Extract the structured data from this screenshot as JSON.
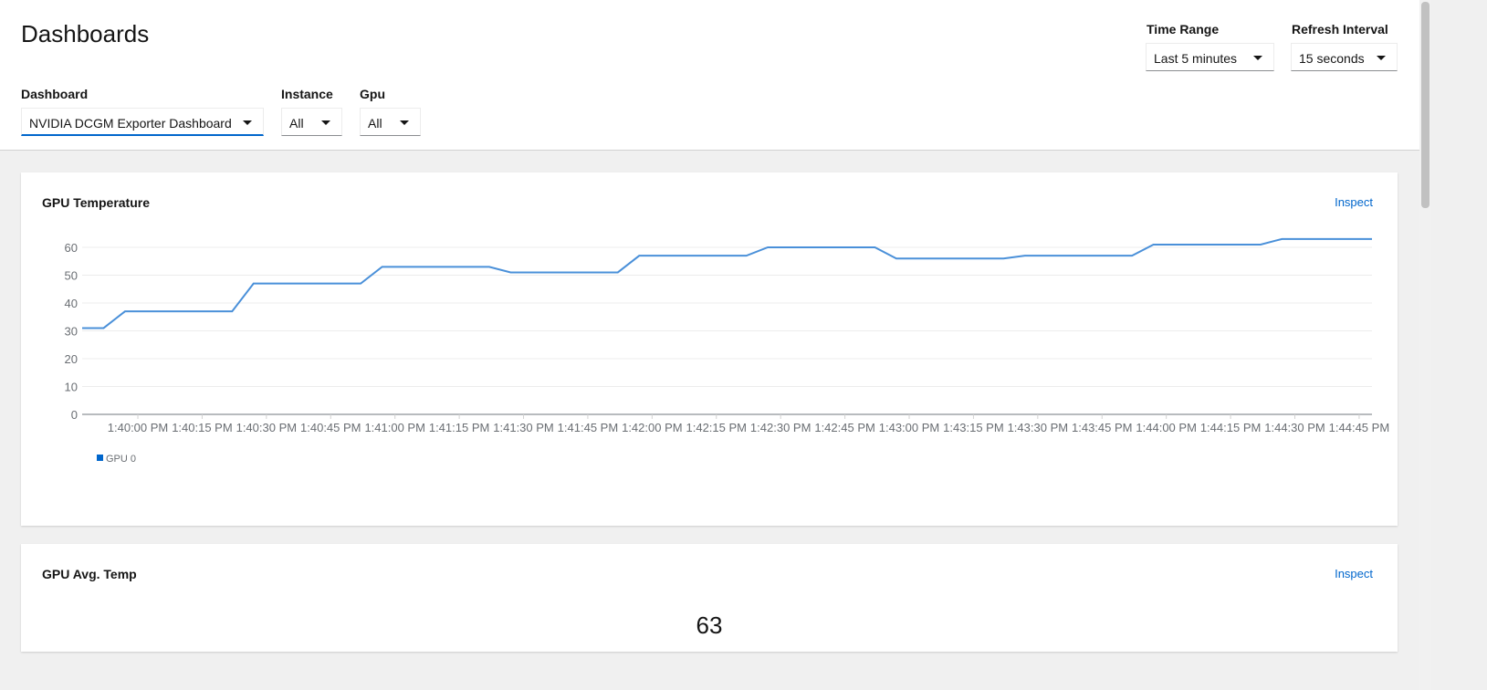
{
  "header": {
    "title": "Dashboards",
    "dashboard": {
      "label": "Dashboard",
      "value": "NVIDIA DCGM Exporter Dashboard"
    },
    "instance": {
      "label": "Instance",
      "value": "All"
    },
    "gpu": {
      "label": "Gpu",
      "value": "All"
    },
    "time_range": {
      "label": "Time Range",
      "value": "Last 5 minutes"
    },
    "refresh": {
      "label": "Refresh Interval",
      "value": "15 seconds"
    }
  },
  "panels": [
    {
      "title": "GPU Temperature",
      "inspect": "Inspect"
    },
    {
      "title": "GPU Avg. Temp",
      "inspect": "Inspect",
      "value": "63"
    }
  ],
  "colors": {
    "accent": "#0066cc",
    "series": "#4a90d9"
  },
  "chart_data": {
    "type": "line",
    "title": "GPU Temperature",
    "ylim": [
      0,
      65
    ],
    "yticks": [
      0,
      10,
      20,
      30,
      40,
      50,
      60
    ],
    "xticks": [
      "1:40:00 PM",
      "1:40:15 PM",
      "1:40:30 PM",
      "1:40:45 PM",
      "1:41:00 PM",
      "1:41:15 PM",
      "1:41:30 PM",
      "1:41:45 PM",
      "1:42:00 PM",
      "1:42:15 PM",
      "1:42:30 PM",
      "1:42:45 PM",
      "1:43:00 PM",
      "1:43:15 PM",
      "1:43:30 PM",
      "1:43:45 PM",
      "1:44:00 PM",
      "1:44:15 PM",
      "1:44:30 PM",
      "1:44:45 PM"
    ],
    "xlim": [
      "1:39:47 PM",
      "1:44:48 PM"
    ],
    "grid": true,
    "legend": "bottom-left",
    "series": [
      {
        "name": "GPU 0",
        "points": [
          [
            "1:39:47 PM",
            31
          ],
          [
            "1:39:52 PM",
            31
          ],
          [
            "1:39:57 PM",
            37
          ],
          [
            "1:40:22 PM",
            37
          ],
          [
            "1:40:27 PM",
            47
          ],
          [
            "1:40:52 PM",
            47
          ],
          [
            "1:40:57 PM",
            53
          ],
          [
            "1:41:22 PM",
            53
          ],
          [
            "1:41:27 PM",
            51
          ],
          [
            "1:41:52 PM",
            51
          ],
          [
            "1:41:57 PM",
            57
          ],
          [
            "1:42:22 PM",
            57
          ],
          [
            "1:42:27 PM",
            60
          ],
          [
            "1:42:52 PM",
            60
          ],
          [
            "1:42:57 PM",
            56
          ],
          [
            "1:43:22 PM",
            56
          ],
          [
            "1:43:27 PM",
            57
          ],
          [
            "1:43:52 PM",
            57
          ],
          [
            "1:43:57 PM",
            61
          ],
          [
            "1:44:22 PM",
            61
          ],
          [
            "1:44:27 PM",
            63
          ],
          [
            "1:44:48 PM",
            63
          ]
        ]
      }
    ]
  }
}
